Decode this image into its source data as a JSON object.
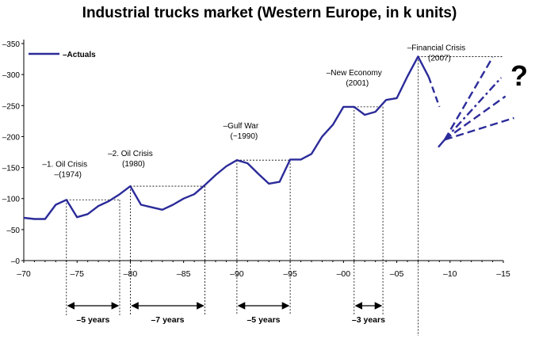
{
  "chart_data": {
    "type": "line",
    "title": "Industrial trucks market (Western Europe, in k units)",
    "xlabel": "",
    "ylabel": "",
    "xlim": [
      1970,
      2015
    ],
    "ylim": [
      0,
      350
    ],
    "x_ticks": [
      1970,
      1975,
      1980,
      1985,
      1990,
      1995,
      2000,
      2005,
      2010,
      2015
    ],
    "x_tick_labels": [
      "–70",
      "–75",
      "–80",
      "–85",
      "–90",
      "–95",
      "–00",
      "–05",
      "–10",
      "–15"
    ],
    "y_ticks": [
      0,
      50,
      100,
      150,
      200,
      250,
      300,
      350
    ],
    "y_tick_labels": [
      "–0",
      "–50",
      "–100",
      "–150",
      "–200",
      "–250",
      "–300",
      "–350"
    ],
    "legend": {
      "position": "top-left",
      "entries": [
        "–Actuals"
      ]
    },
    "series": [
      {
        "name": "–Actuals",
        "color": "#2b2b9a",
        "x": [
          1970,
          1971,
          1972,
          1973,
          1974,
          1975,
          1976,
          1977,
          1978,
          1979,
          1980,
          1981,
          1982,
          1983,
          1984,
          1985,
          1986,
          1987,
          1988,
          1989,
          1990,
          1991,
          1992,
          1993,
          1994,
          1995,
          1996,
          1997,
          1998,
          1999,
          2000,
          2001,
          2002,
          2003,
          2004,
          2005,
          2006,
          2007,
          2008
        ],
        "y": [
          69,
          67,
          67,
          90,
          98,
          70,
          75,
          88,
          96,
          107,
          120,
          90,
          86,
          82,
          90,
          100,
          107,
          122,
          138,
          152,
          162,
          157,
          140,
          124,
          127,
          163,
          163,
          172,
          200,
          219,
          248,
          248,
          235,
          240,
          259,
          262,
          297,
          329,
          296
        ]
      }
    ],
    "forecast": {
      "color": "#2b2b9a",
      "from": [
        2008,
        296
      ],
      "to": [
        2009,
        248
      ],
      "pivot": [
        2009.5,
        195
      ],
      "start_point": [
        2008.9,
        183
      ],
      "scenarios": [
        [
          2014,
          328
        ],
        [
          2014.8,
          295
        ],
        [
          2015.2,
          265
        ],
        [
          2016,
          230
        ]
      ],
      "question_mark": "?"
    },
    "annotations": [
      {
        "lines": [
          "–1. Oil Crisis",
          "–(1974)"
        ],
        "x": 1974,
        "y": 98
      },
      {
        "lines": [
          "–2. Oil Crisis",
          "(1980)"
        ],
        "x": 1980,
        "y": 120
      },
      {
        "lines": [
          "–Gulf War",
          "(~1990)"
        ],
        "x": 1990,
        "y": 162
      },
      {
        "lines": [
          "–New Economy",
          "(2001)"
        ],
        "x": 2001,
        "y": 248
      },
      {
        "lines": [
          "–Financial Crisis",
          "(2007)"
        ],
        "x": 2007,
        "y": 329
      }
    ],
    "cycles": [
      {
        "label": "–5 years",
        "from": 1974,
        "to": 1979,
        "peak_y": 98
      },
      {
        "label": "–7 years",
        "from": 1980,
        "to": 1987,
        "peak_y": 120
      },
      {
        "label": "–5 years",
        "from": 1990,
        "to": 1995,
        "peak_y": 162
      },
      {
        "label": "–3 years",
        "from": 2001,
        "to": 2003.7,
        "peak_y": 248
      }
    ],
    "marker_year": 2007
  }
}
